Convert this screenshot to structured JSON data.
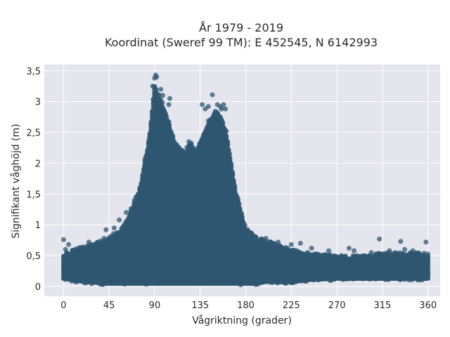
{
  "chart_data": {
    "type": "scatter",
    "title_line1": "År 1979 - 2019",
    "title_line2": "Koordinat (Sweref 99 TM): E 452545, N 6142993",
    "xlabel": "Vågriktning (grader)",
    "ylabel": "Signifikant våghöjd (m)",
    "xlim": [
      -19,
      372
    ],
    "ylim": [
      -0.16,
      3.6
    ],
    "x_ticks": [
      0,
      45,
      90,
      135,
      180,
      225,
      270,
      315,
      360
    ],
    "x_tick_labels": [
      "0",
      "45",
      "90",
      "135",
      "180",
      "225",
      "270",
      "315",
      "360"
    ],
    "y_ticks": [
      0,
      0.5,
      1,
      1.5,
      2,
      2.5,
      3,
      3.5
    ],
    "y_tick_labels": [
      "0",
      "0,5",
      "1",
      "1,5",
      "2",
      "2,5",
      "3",
      "3,5"
    ],
    "grid": true,
    "marker_color": "#2f5771",
    "background_color": "#e5e5ee",
    "envelope": {
      "x": [
        0,
        20,
        45,
        60,
        75,
        85,
        90,
        95,
        100,
        110,
        120,
        125,
        130,
        140,
        145,
        150,
        155,
        160,
        165,
        170,
        180,
        190,
        200,
        210,
        225,
        240,
        270,
        300,
        315,
        330,
        345,
        360
      ],
      "upper": [
        0.55,
        0.65,
        0.8,
        1.0,
        1.6,
        2.5,
        3.3,
        3.1,
        2.9,
        2.4,
        2.2,
        2.4,
        2.2,
        2.6,
        2.75,
        2.9,
        2.8,
        2.6,
        2.1,
        1.6,
        0.95,
        0.8,
        0.75,
        0.7,
        0.6,
        0.55,
        0.5,
        0.5,
        0.55,
        0.55,
        0.55,
        0.55
      ],
      "lower": [
        0.1,
        0.05,
        0.02,
        0.02,
        0.02,
        0.02,
        0.02,
        0.02,
        0.02,
        0.02,
        0.02,
        0.02,
        0.02,
        0.02,
        0.02,
        0.02,
        0.02,
        0.02,
        0.02,
        0.02,
        0.02,
        0.02,
        0.05,
        0.05,
        0.05,
        0.08,
        0.1,
        0.1,
        0.1,
        0.1,
        0.1,
        0.1
      ]
    },
    "outlier_points": {
      "x": [
        0,
        2,
        5,
        25,
        40,
        42,
        50,
        55,
        62,
        70,
        88,
        90,
        91,
        92,
        96,
        98,
        104,
        105,
        137,
        140,
        143,
        147,
        152,
        155,
        156,
        158,
        160,
        185,
        190,
        200,
        212,
        225,
        234,
        245,
        262,
        282,
        287,
        304,
        312,
        322,
        333,
        337,
        345,
        358
      ],
      "y": [
        0.76,
        0.6,
        0.68,
        0.72,
        0.78,
        0.92,
        0.95,
        1.08,
        1.2,
        1.4,
        3.25,
        3.38,
        3.43,
        3.4,
        3.2,
        3.1,
        2.95,
        3.05,
        2.95,
        2.88,
        2.92,
        3.11,
        2.95,
        2.92,
        2.88,
        2.95,
        2.88,
        0.85,
        0.8,
        0.78,
        0.72,
        0.68,
        0.7,
        0.62,
        0.58,
        0.62,
        0.58,
        0.55,
        0.77,
        0.58,
        0.73,
        0.6,
        0.58,
        0.72
      ]
    }
  }
}
